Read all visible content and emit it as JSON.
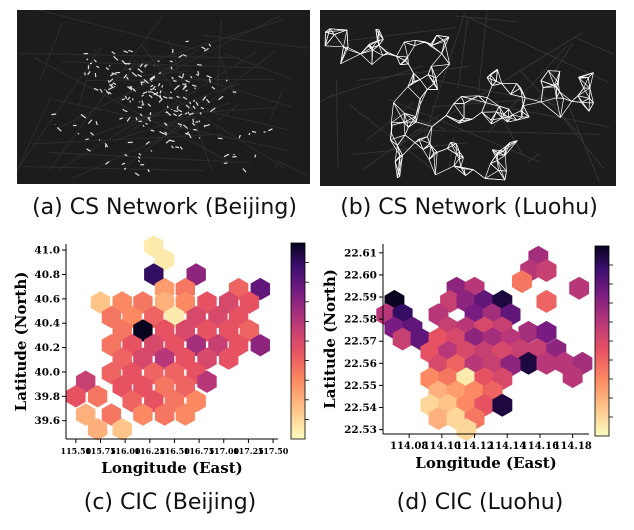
{
  "captions": {
    "a": "(a) CS Network (Beijing)",
    "b": "(b) CS Network (Luohu)",
    "c": "(c) CIC (Beijing)",
    "d": "(d) CIC (Luohu)"
  },
  "chart_data": [
    {
      "type": "heatmap",
      "subtype": "hexbin",
      "xlabel": "Longitude (East)",
      "ylabel": "Latitude (North)",
      "xlim": [
        115.4,
        117.55
      ],
      "ylim": [
        39.45,
        41.05
      ],
      "xticks": [
        115.5,
        115.75,
        116.0,
        116.25,
        116.5,
        116.75,
        117.0,
        117.25,
        117.5
      ],
      "xtick_labels": [
        "115.50",
        "115.75",
        "116.00",
        "116.25",
        "116.50",
        "116.75",
        "117.00",
        "117.25",
        "117.50"
      ],
      "yticks": [
        39.6,
        39.8,
        40.0,
        40.2,
        40.4,
        40.6,
        40.8,
        41.0
      ],
      "ytick_labels": [
        "39.6",
        "39.8",
        "40.0",
        "40.2",
        "40.4",
        "40.6",
        "40.8",
        "41.0"
      ],
      "colorbar": true,
      "colormap": "magma_r",
      "cells": [
        {
          "x": 116.29,
          "y": 41.03,
          "v": 0.05
        },
        {
          "x": 116.4,
          "y": 40.92,
          "v": 0.05
        },
        {
          "x": 116.29,
          "y": 40.8,
          "v": 0.9
        },
        {
          "x": 116.72,
          "y": 40.8,
          "v": 0.7
        },
        {
          "x": 116.4,
          "y": 40.68,
          "v": 0.25
        },
        {
          "x": 116.61,
          "y": 40.68,
          "v": 0.35
        },
        {
          "x": 117.15,
          "y": 40.68,
          "v": 0.4
        },
        {
          "x": 117.37,
          "y": 40.68,
          "v": 0.8
        },
        {
          "x": 115.75,
          "y": 40.57,
          "v": 0.15
        },
        {
          "x": 115.97,
          "y": 40.57,
          "v": 0.3
        },
        {
          "x": 116.18,
          "y": 40.57,
          "v": 0.35
        },
        {
          "x": 116.4,
          "y": 40.57,
          "v": 0.2
        },
        {
          "x": 116.61,
          "y": 40.57,
          "v": 0.3
        },
        {
          "x": 116.83,
          "y": 40.57,
          "v": 0.45
        },
        {
          "x": 117.05,
          "y": 40.57,
          "v": 0.5
        },
        {
          "x": 117.26,
          "y": 40.57,
          "v": 0.45
        },
        {
          "x": 115.86,
          "y": 40.45,
          "v": 0.35
        },
        {
          "x": 116.07,
          "y": 40.45,
          "v": 0.3
        },
        {
          "x": 116.29,
          "y": 40.45,
          "v": 0.4
        },
        {
          "x": 116.5,
          "y": 40.45,
          "v": 0.05
        },
        {
          "x": 116.72,
          "y": 40.45,
          "v": 0.5
        },
        {
          "x": 116.94,
          "y": 40.45,
          "v": 0.5
        },
        {
          "x": 117.15,
          "y": 40.45,
          "v": 0.45
        },
        {
          "x": 115.97,
          "y": 40.34,
          "v": 0.35
        },
        {
          "x": 116.18,
          "y": 40.34,
          "v": 1.0
        },
        {
          "x": 116.4,
          "y": 40.34,
          "v": 0.45
        },
        {
          "x": 116.61,
          "y": 40.34,
          "v": 0.5
        },
        {
          "x": 116.83,
          "y": 40.34,
          "v": 0.45
        },
        {
          "x": 117.05,
          "y": 40.34,
          "v": 0.45
        },
        {
          "x": 117.26,
          "y": 40.34,
          "v": 0.4
        },
        {
          "x": 115.86,
          "y": 40.22,
          "v": 0.35
        },
        {
          "x": 116.07,
          "y": 40.22,
          "v": 0.45
        },
        {
          "x": 116.29,
          "y": 40.22,
          "v": 0.5
        },
        {
          "x": 116.5,
          "y": 40.22,
          "v": 0.45
        },
        {
          "x": 116.72,
          "y": 40.22,
          "v": 0.65
        },
        {
          "x": 116.94,
          "y": 40.22,
          "v": 0.55
        },
        {
          "x": 117.15,
          "y": 40.22,
          "v": 0.45
        },
        {
          "x": 117.37,
          "y": 40.22,
          "v": 0.7
        },
        {
          "x": 115.97,
          "y": 40.11,
          "v": 0.4
        },
        {
          "x": 116.18,
          "y": 40.11,
          "v": 0.5
        },
        {
          "x": 116.4,
          "y": 40.11,
          "v": 0.6
        },
        {
          "x": 116.61,
          "y": 40.11,
          "v": 0.45
        },
        {
          "x": 116.83,
          "y": 40.11,
          "v": 0.5
        },
        {
          "x": 117.05,
          "y": 40.11,
          "v": 0.45
        },
        {
          "x": 115.86,
          "y": 39.99,
          "v": 0.4
        },
        {
          "x": 116.07,
          "y": 39.99,
          "v": 0.45
        },
        {
          "x": 116.29,
          "y": 39.99,
          "v": 0.4
        },
        {
          "x": 116.5,
          "y": 39.99,
          "v": 0.4
        },
        {
          "x": 116.72,
          "y": 39.99,
          "v": 0.45
        },
        {
          "x": 115.6,
          "y": 39.92,
          "v": 0.55
        },
        {
          "x": 116.83,
          "y": 39.92,
          "v": 0.6
        },
        {
          "x": 115.97,
          "y": 39.88,
          "v": 0.45
        },
        {
          "x": 116.18,
          "y": 39.88,
          "v": 0.45
        },
        {
          "x": 116.4,
          "y": 39.88,
          "v": 0.35
        },
        {
          "x": 116.61,
          "y": 39.88,
          "v": 0.4
        },
        {
          "x": 115.5,
          "y": 39.8,
          "v": 0.45
        },
        {
          "x": 115.72,
          "y": 39.8,
          "v": 0.35
        },
        {
          "x": 116.07,
          "y": 39.76,
          "v": 0.4
        },
        {
          "x": 116.29,
          "y": 39.76,
          "v": 0.45
        },
        {
          "x": 116.5,
          "y": 39.76,
          "v": 0.35
        },
        {
          "x": 116.72,
          "y": 39.76,
          "v": 0.3
        },
        {
          "x": 115.6,
          "y": 39.65,
          "v": 0.2
        },
        {
          "x": 115.86,
          "y": 39.65,
          "v": 0.35
        },
        {
          "x": 116.18,
          "y": 39.65,
          "v": 0.3
        },
        {
          "x": 116.4,
          "y": 39.65,
          "v": 0.35
        },
        {
          "x": 116.61,
          "y": 39.65,
          "v": 0.3
        },
        {
          "x": 115.97,
          "y": 39.53,
          "v": 0.15
        },
        {
          "x": 115.72,
          "y": 39.53,
          "v": 0.2
        }
      ]
    },
    {
      "type": "heatmap",
      "subtype": "hexbin",
      "xlabel": "Longitude (East)",
      "ylabel": "Latitude (North)",
      "xlim": [
        114.064,
        114.19
      ],
      "ylim": [
        22.528,
        22.614
      ],
      "xticks": [
        114.08,
        114.1,
        114.12,
        114.14,
        114.16,
        114.18
      ],
      "xtick_labels": [
        "114.08",
        "114.10",
        "114.12",
        "114.14",
        "114.16",
        "114.18"
      ],
      "yticks": [
        22.53,
        22.54,
        22.55,
        22.56,
        22.57,
        22.58,
        22.59,
        22.6,
        22.61
      ],
      "ytick_labels": [
        "22.53",
        "22.54",
        "22.55",
        "22.56",
        "22.57",
        "22.58",
        "22.59",
        "22.60",
        "22.61"
      ],
      "colorbar": true,
      "colormap": "magma_r",
      "cells": [
        {
          "x": 114.159,
          "y": 22.608,
          "v": 0.65
        },
        {
          "x": 114.154,
          "y": 22.602,
          "v": 0.6
        },
        {
          "x": 114.164,
          "y": 22.602,
          "v": 0.55
        },
        {
          "x": 114.149,
          "y": 22.597,
          "v": 0.35
        },
        {
          "x": 114.109,
          "y": 22.594,
          "v": 0.7
        },
        {
          "x": 114.12,
          "y": 22.594,
          "v": 0.6
        },
        {
          "x": 114.184,
          "y": 22.594,
          "v": 0.6
        },
        {
          "x": 114.071,
          "y": 22.588,
          "v": 1.0
        },
        {
          "x": 114.105,
          "y": 22.588,
          "v": 0.55
        },
        {
          "x": 114.115,
          "y": 22.588,
          "v": 0.7
        },
        {
          "x": 114.126,
          "y": 22.588,
          "v": 0.8
        },
        {
          "x": 114.137,
          "y": 22.588,
          "v": 0.95
        },
        {
          "x": 114.164,
          "y": 22.588,
          "v": 0.4
        },
        {
          "x": 114.066,
          "y": 22.582,
          "v": 0.6
        },
        {
          "x": 114.076,
          "y": 22.582,
          "v": 0.9
        },
        {
          "x": 114.098,
          "y": 22.582,
          "v": 0.6
        },
        {
          "x": 114.12,
          "y": 22.582,
          "v": 0.75
        },
        {
          "x": 114.131,
          "y": 22.582,
          "v": 0.65
        },
        {
          "x": 114.142,
          "y": 22.582,
          "v": 0.8
        },
        {
          "x": 114.071,
          "y": 22.576,
          "v": 0.75
        },
        {
          "x": 114.082,
          "y": 22.576,
          "v": 0.8
        },
        {
          "x": 114.104,
          "y": 22.576,
          "v": 0.55
        },
        {
          "x": 114.115,
          "y": 22.576,
          "v": 0.6
        },
        {
          "x": 114.126,
          "y": 22.576,
          "v": 0.5
        },
        {
          "x": 114.137,
          "y": 22.576,
          "v": 0.55
        },
        {
          "x": 114.153,
          "y": 22.574,
          "v": 0.65
        },
        {
          "x": 114.164,
          "y": 22.574,
          "v": 0.75
        },
        {
          "x": 114.076,
          "y": 22.571,
          "v": 0.55
        },
        {
          "x": 114.087,
          "y": 22.571,
          "v": 0.8
        },
        {
          "x": 114.098,
          "y": 22.571,
          "v": 0.45
        },
        {
          "x": 114.109,
          "y": 22.571,
          "v": 0.5
        },
        {
          "x": 114.12,
          "y": 22.571,
          "v": 0.7
        },
        {
          "x": 114.131,
          "y": 22.571,
          "v": 0.65
        },
        {
          "x": 114.142,
          "y": 22.571,
          "v": 0.6
        },
        {
          "x": 114.148,
          "y": 22.566,
          "v": 0.55
        },
        {
          "x": 114.159,
          "y": 22.566,
          "v": 0.55
        },
        {
          "x": 114.17,
          "y": 22.566,
          "v": 0.7
        },
        {
          "x": 114.093,
          "y": 22.565,
          "v": 0.45
        },
        {
          "x": 114.104,
          "y": 22.565,
          "v": 0.6
        },
        {
          "x": 114.115,
          "y": 22.565,
          "v": 0.5
        },
        {
          "x": 114.126,
          "y": 22.565,
          "v": 0.55
        },
        {
          "x": 114.137,
          "y": 22.565,
          "v": 0.5
        },
        {
          "x": 114.153,
          "y": 22.56,
          "v": 0.95
        },
        {
          "x": 114.164,
          "y": 22.56,
          "v": 0.6
        },
        {
          "x": 114.175,
          "y": 22.56,
          "v": 0.6
        },
        {
          "x": 114.186,
          "y": 22.56,
          "v": 0.65
        },
        {
          "x": 114.098,
          "y": 22.559,
          "v": 0.5
        },
        {
          "x": 114.109,
          "y": 22.559,
          "v": 0.4
        },
        {
          "x": 114.12,
          "y": 22.559,
          "v": 0.6
        },
        {
          "x": 114.131,
          "y": 22.559,
          "v": 0.55
        },
        {
          "x": 114.142,
          "y": 22.559,
          "v": 0.7
        },
        {
          "x": 114.18,
          "y": 22.554,
          "v": 0.6
        },
        {
          "x": 114.093,
          "y": 22.553,
          "v": 0.3
        },
        {
          "x": 114.104,
          "y": 22.553,
          "v": 0.35
        },
        {
          "x": 114.115,
          "y": 22.553,
          "v": 0.05
        },
        {
          "x": 114.126,
          "y": 22.553,
          "v": 0.45
        },
        {
          "x": 114.137,
          "y": 22.553,
          "v": 0.5
        },
        {
          "x": 114.098,
          "y": 22.547,
          "v": 0.2
        },
        {
          "x": 114.109,
          "y": 22.547,
          "v": 0.25
        },
        {
          "x": 114.12,
          "y": 22.547,
          "v": 0.3
        },
        {
          "x": 114.131,
          "y": 22.547,
          "v": 0.4
        },
        {
          "x": 114.093,
          "y": 22.541,
          "v": 0.1
        },
        {
          "x": 114.104,
          "y": 22.541,
          "v": 0.15
        },
        {
          "x": 114.115,
          "y": 22.541,
          "v": 0.3
        },
        {
          "x": 114.126,
          "y": 22.541,
          "v": 0.45
        },
        {
          "x": 114.137,
          "y": 22.541,
          "v": 0.95
        },
        {
          "x": 114.098,
          "y": 22.535,
          "v": 0.2
        },
        {
          "x": 114.109,
          "y": 22.535,
          "v": 0.1
        },
        {
          "x": 114.12,
          "y": 22.535,
          "v": 0.35
        },
        {
          "x": 114.115,
          "y": 22.53,
          "v": 0.1
        }
      ]
    }
  ]
}
